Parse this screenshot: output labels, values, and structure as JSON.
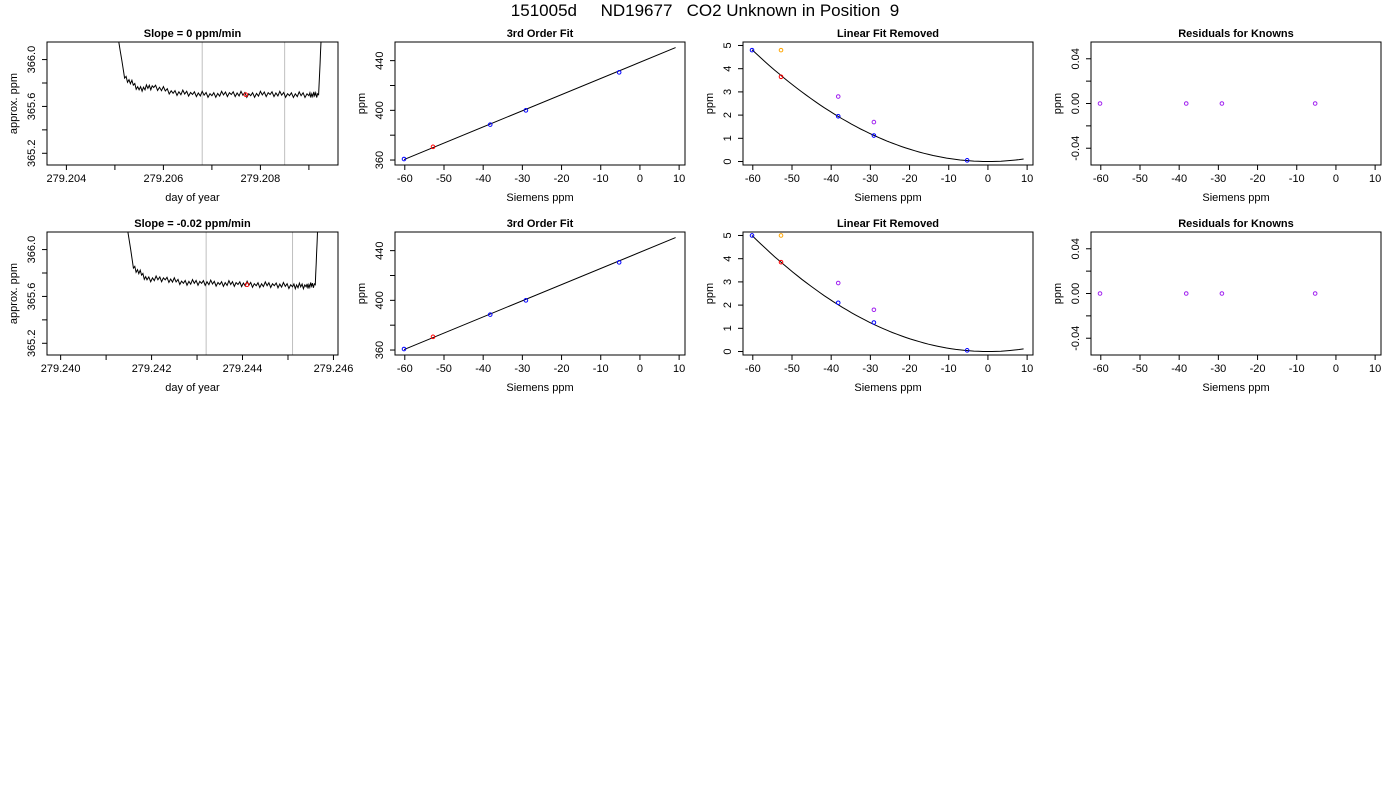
{
  "figure": {
    "title": "151005d     ND19677   CO2 Unknown in Position  9"
  },
  "colors": {
    "line": "#000000",
    "vline": "#bfbfbf",
    "highlight": "#ff0000",
    "known": "#0000ff",
    "residual": "#a020f0",
    "orange": "#ffa500"
  },
  "chart_data": [
    {
      "type": "line",
      "title": "Slope =  0  ppm/min",
      "xlabel": "day of year",
      "ylabel": "approx. ppm",
      "xlim": [
        279.2036,
        279.2096
      ],
      "ylim": [
        365.1,
        366.15
      ],
      "x_ticks": [
        279.204,
        279.205,
        279.206,
        279.207,
        279.208,
        279.209
      ],
      "x_tick_labels": [
        "279.204",
        "",
        "279.206",
        "",
        "279.208",
        ""
      ],
      "y_ticks": [
        365.2,
        365.4,
        365.6,
        365.8,
        366.0
      ],
      "y_tick_labels": [
        "365.2",
        "",
        "365.6",
        "",
        "366.0"
      ],
      "vlines": [
        279.2068,
        279.2085
      ],
      "series": [
        {
          "x": [
            279.2049,
            279.2052,
            279.2055,
            279.2058,
            279.2062,
            279.2066,
            279.207,
            279.2074,
            279.2078,
            279.2082,
            279.2086,
            279.209,
            279.2092,
            279.2093
          ],
          "y": [
            366.6,
            365.85,
            365.75,
            365.77,
            365.72,
            365.71,
            365.7,
            365.71,
            365.7,
            365.71,
            365.7,
            365.7,
            365.7,
            366.6
          ]
        }
      ],
      "highlight_points": [
        {
          "x": 279.2077,
          "y": 365.7
        }
      ]
    },
    {
      "type": "scatter",
      "title": "3rd Order Fit",
      "xlabel": "Siemens ppm",
      "ylabel": "ppm",
      "xlim": [
        -62.5,
        11.5
      ],
      "ylim": [
        356,
        455
      ],
      "x_ticks": [
        -60,
        -50,
        -40,
        -30,
        -20,
        -10,
        0,
        10
      ],
      "x_tick_labels": [
        "-60",
        "-50",
        "-40",
        "-30",
        "-20",
        "-10",
        "0",
        "10"
      ],
      "y_ticks": [
        360,
        380,
        400,
        420,
        440
      ],
      "y_tick_labels": [
        "360",
        "",
        "400",
        "",
        "440"
      ],
      "fit_line": {
        "x": [
          -60.2,
          9.1
        ],
        "y": [
          360.4,
          450.5
        ]
      },
      "points_known": [
        {
          "x": -60.2,
          "y": 360.8
        },
        {
          "x": -38.2,
          "y": 388.5
        },
        {
          "x": -29.1,
          "y": 400.0
        },
        {
          "x": -5.3,
          "y": 430.6
        }
      ],
      "points_unknown": [
        {
          "x": -52.8,
          "y": 370.6
        }
      ]
    },
    {
      "type": "scatter",
      "title": "Linear Fit Removed",
      "xlabel": "Siemens ppm",
      "ylabel": "ppm",
      "xlim": [
        -62.5,
        11.5
      ],
      "ylim": [
        -0.15,
        5.15
      ],
      "x_ticks": [
        -60,
        -50,
        -40,
        -30,
        -20,
        -10,
        0,
        10
      ],
      "x_tick_labels": [
        "-60",
        "-50",
        "-40",
        "-30",
        "-20",
        "-10",
        "0",
        "10"
      ],
      "y_ticks": [
        0,
        1,
        2,
        3,
        4,
        5
      ],
      "y_tick_labels": [
        "0",
        "1",
        "2",
        "3",
        "4",
        "5"
      ],
      "curve_coef": 0.00133,
      "curve_range": [
        -60.2,
        9.1
      ],
      "points_known": [
        {
          "x": -60.2,
          "y": 4.8
        },
        {
          "x": -38.2,
          "y": 1.95
        },
        {
          "x": -29.1,
          "y": 1.12
        },
        {
          "x": -5.3,
          "y": 0.05
        }
      ],
      "points_unknown": [
        {
          "x": -52.8,
          "y": 3.65
        }
      ],
      "points_orange": [
        {
          "x": -52.8,
          "y": 4.8
        }
      ],
      "points_purple": [
        {
          "x": -38.2,
          "y": 2.8
        },
        {
          "x": -29.1,
          "y": 1.7
        }
      ]
    },
    {
      "type": "scatter",
      "title": "Residuals for Knowns",
      "xlabel": "Siemens ppm",
      "ylabel": "ppm",
      "xlim": [
        -62.5,
        11.5
      ],
      "ylim": [
        -0.055,
        0.055
      ],
      "x_ticks": [
        -60,
        -50,
        -40,
        -30,
        -20,
        -10,
        0,
        10
      ],
      "x_tick_labels": [
        "-60",
        "-50",
        "-40",
        "-30",
        "-20",
        "-10",
        "0",
        "10"
      ],
      "y_ticks": [
        -0.04,
        -0.02,
        0,
        0.02,
        0.04
      ],
      "y_tick_labels": [
        "-0.04",
        "",
        "0.00",
        "",
        "0.04"
      ],
      "points_residual": [
        {
          "x": -60.2,
          "y": 0
        },
        {
          "x": -38.2,
          "y": 0
        },
        {
          "x": -29.1,
          "y": 0
        },
        {
          "x": -5.3,
          "y": 0
        }
      ]
    },
    {
      "type": "line",
      "title": "Slope =  -0.02  ppm/min",
      "xlabel": "day of year",
      "ylabel": "approx. ppm",
      "xlim": [
        279.2397,
        279.2461
      ],
      "ylim": [
        365.1,
        366.15
      ],
      "x_ticks": [
        279.24,
        279.241,
        279.242,
        279.243,
        279.244,
        279.245,
        279.246
      ],
      "x_tick_labels": [
        "279.240",
        "",
        "279.242",
        "",
        "279.244",
        "",
        "279.246"
      ],
      "y_ticks": [
        365.2,
        365.4,
        365.6,
        365.8,
        366.0
      ],
      "y_tick_labels": [
        "365.2",
        "",
        "365.6",
        "",
        "366.0"
      ],
      "vlines": [
        279.2432,
        279.2451
      ],
      "series": [
        {
          "x": [
            279.2413,
            279.2416,
            279.2419,
            279.2423,
            279.2427,
            279.2431,
            279.2435,
            279.2439,
            279.2443,
            279.2447,
            279.2451,
            279.2454,
            279.2456,
            279.2457
          ],
          "y": [
            366.6,
            365.85,
            365.75,
            365.75,
            365.72,
            365.72,
            365.71,
            365.71,
            365.7,
            365.7,
            365.69,
            365.69,
            365.7,
            366.6
          ]
        }
      ],
      "highlight_points": [
        {
          "x": 279.2441,
          "y": 365.7
        }
      ]
    },
    {
      "type": "scatter",
      "title": "3rd Order Fit",
      "xlabel": "Siemens ppm",
      "ylabel": "ppm",
      "xlim": [
        -62.5,
        11.5
      ],
      "ylim": [
        356,
        455
      ],
      "x_ticks": [
        -60,
        -50,
        -40,
        -30,
        -20,
        -10,
        0,
        10
      ],
      "x_tick_labels": [
        "-60",
        "-50",
        "-40",
        "-30",
        "-20",
        "-10",
        "0",
        "10"
      ],
      "y_ticks": [
        360,
        380,
        400,
        420,
        440
      ],
      "y_tick_labels": [
        "360",
        "",
        "400",
        "",
        "440"
      ],
      "fit_line": {
        "x": [
          -60.2,
          9.1
        ],
        "y": [
          360.4,
          450.5
        ]
      },
      "points_known": [
        {
          "x": -60.2,
          "y": 360.8
        },
        {
          "x": -38.2,
          "y": 388.5
        },
        {
          "x": -29.1,
          "y": 400.0
        },
        {
          "x": -5.3,
          "y": 430.6
        }
      ],
      "points_unknown": [
        {
          "x": -52.8,
          "y": 370.6
        }
      ]
    },
    {
      "type": "scatter",
      "title": "Linear Fit Removed",
      "xlabel": "Siemens ppm",
      "ylabel": "ppm",
      "xlim": [
        -62.5,
        11.5
      ],
      "ylim": [
        -0.15,
        5.15
      ],
      "x_ticks": [
        -60,
        -50,
        -40,
        -30,
        -20,
        -10,
        0,
        10
      ],
      "x_tick_labels": [
        "-60",
        "-50",
        "-40",
        "-30",
        "-20",
        "-10",
        "0",
        "10"
      ],
      "y_ticks": [
        0,
        1,
        2,
        3,
        4,
        5
      ],
      "y_tick_labels": [
        "0",
        "1",
        "2",
        "3",
        "4",
        "5"
      ],
      "curve_coef": 0.00138,
      "curve_range": [
        -60.2,
        9.1
      ],
      "points_known": [
        {
          "x": -60.2,
          "y": 5.0
        },
        {
          "x": -38.2,
          "y": 2.1
        },
        {
          "x": -29.1,
          "y": 1.25
        },
        {
          "x": -5.3,
          "y": 0.05
        }
      ],
      "points_unknown": [
        {
          "x": -52.8,
          "y": 3.85
        }
      ],
      "points_orange": [
        {
          "x": -52.8,
          "y": 5.0
        }
      ],
      "points_purple": [
        {
          "x": -38.2,
          "y": 2.95
        },
        {
          "x": -29.1,
          "y": 1.8
        }
      ]
    },
    {
      "type": "scatter",
      "title": "Residuals for Knowns",
      "xlabel": "Siemens ppm",
      "ylabel": "ppm",
      "xlim": [
        -62.5,
        11.5
      ],
      "ylim": [
        -0.055,
        0.055
      ],
      "x_ticks": [
        -60,
        -50,
        -40,
        -30,
        -20,
        -10,
        0,
        10
      ],
      "x_tick_labels": [
        "-60",
        "-50",
        "-40",
        "-30",
        "-20",
        "-10",
        "0",
        "10"
      ],
      "y_ticks": [
        -0.04,
        -0.02,
        0,
        0.02,
        0.04
      ],
      "y_tick_labels": [
        "-0.04",
        "",
        "0.00",
        "",
        "0.04"
      ],
      "points_residual": [
        {
          "x": -60.2,
          "y": 0
        },
        {
          "x": -38.2,
          "y": 0
        },
        {
          "x": -29.1,
          "y": 0
        },
        {
          "x": -5.3,
          "y": 0
        }
      ]
    }
  ]
}
